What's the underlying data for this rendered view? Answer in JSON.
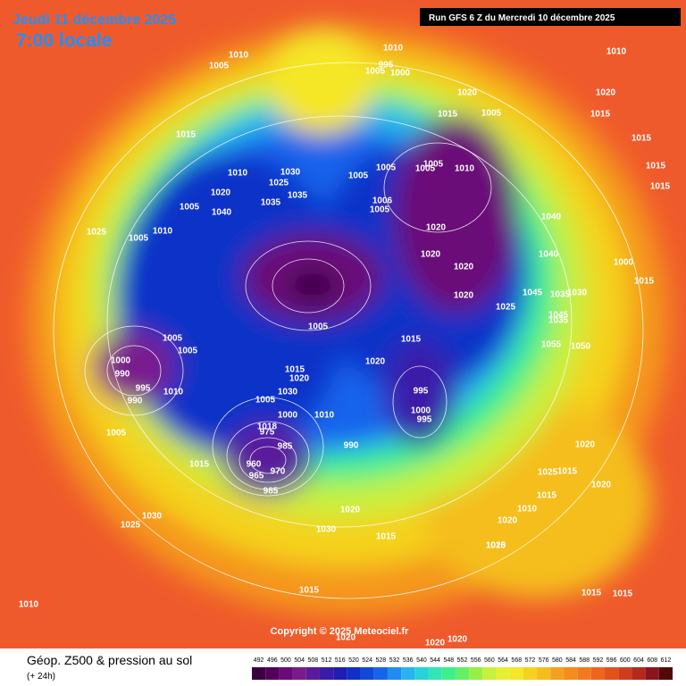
{
  "header": {
    "date": "Jeudi 11 décembre 2025",
    "time": "7:00 locale",
    "run": "Run GFS 6 Z du Mercredi 10 décembre 2025"
  },
  "copyright": "Copyright © 2025 Meteociel.fr",
  "legend": {
    "title": "Géop. Z500 & pression au sol",
    "subtitle": "(+ 24h)",
    "scale": [
      492,
      496,
      500,
      504,
      508,
      512,
      516,
      520,
      524,
      528,
      532,
      536,
      540,
      544,
      548,
      552,
      556,
      560,
      564,
      568,
      572,
      576,
      580,
      584,
      588,
      592,
      596,
      600,
      604,
      608,
      612
    ],
    "colors": [
      "#3a0040",
      "#52005a",
      "#6a0a78",
      "#7a1a8c",
      "#5a1a9a",
      "#3a1aa8",
      "#1e1eb4",
      "#1030c8",
      "#1048dc",
      "#1464ec",
      "#1e8cf0",
      "#28b4f0",
      "#28d2dc",
      "#32e6b4",
      "#3cf08c",
      "#64f064",
      "#96f046",
      "#c8f03c",
      "#e6f032",
      "#f5e628",
      "#f5d21e",
      "#f5be1e",
      "#f5a01e",
      "#f58c1e",
      "#f5781e",
      "#f0641e",
      "#e6501e",
      "#d23c1e",
      "#b4281e",
      "#8c141e",
      "#500a0a"
    ]
  },
  "pressure_labels": [
    "1010",
    "1010",
    "1005",
    "1005",
    "995",
    "1000",
    "1010",
    "1020",
    "1015",
    "1005",
    "1015",
    "1015",
    "1020",
    "1015",
    "1015",
    "1015",
    "1010",
    "1030",
    "1025",
    "1035",
    "1040",
    "1010",
    "1005",
    "1005",
    "1025",
    "1035",
    "1020",
    "1005",
    "1005",
    "1005",
    "1006",
    "1005",
    "1010",
    "1005",
    "1020",
    "1020",
    "1020",
    "1020",
    "1000",
    "1015",
    "1045",
    "1035",
    "1030",
    "1040",
    "1040",
    "1045",
    "1035",
    "1050",
    "1055",
    "1015",
    "1025",
    "1005",
    "1005",
    "1020",
    "1005",
    "1000",
    "990",
    "995",
    "990",
    "1010",
    "1005",
    "1015",
    "1020",
    "1015",
    "1030",
    "1025",
    "1000",
    "995",
    "995",
    "1000",
    "1010",
    "1005",
    "1018",
    "975",
    "985",
    "960",
    "965",
    "970",
    "985",
    "990",
    "1015",
    "1030",
    "1020",
    "1020",
    "1020",
    "1015",
    "1010",
    "1030",
    "1025",
    "1015",
    "1020",
    "1020",
    "1015",
    "1015",
    "1015",
    "1020",
    "1020",
    "1020",
    "1010",
    "1015"
  ]
}
